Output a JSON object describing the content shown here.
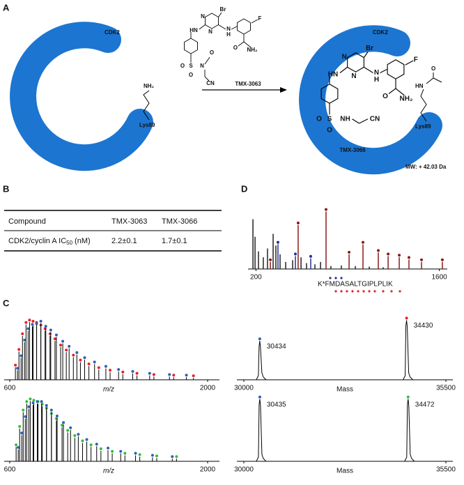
{
  "panel_a": {
    "label": "A",
    "protein": "CDK2",
    "residue": "Lys89",
    "amine": "NH₂",
    "acetyl_amine": "HN",
    "acetyl_oxygen": "O",
    "mass_shift": "MW: + 42.03 Da",
    "compounds": [
      {
        "name": "TMX-3063",
        "atoms": [
          "Br",
          "N",
          "N",
          "HN",
          "N",
          "H",
          "F",
          "O",
          "NH₂",
          "S",
          "O",
          "O",
          "N",
          "O",
          "CN"
        ]
      },
      {
        "name": "TMX-3066",
        "atoms": [
          "Br",
          "N",
          "N",
          "HN",
          "N",
          "H",
          "F",
          "O",
          "NH₂",
          "S",
          "O",
          "O",
          "NH",
          "CN"
        ]
      }
    ]
  },
  "panel_b": {
    "label": "B",
    "header": [
      "Compound",
      "TMX-3063",
      "TMX-3066"
    ],
    "row": {
      "name": "CDK2/cyclin A IC",
      "subscript": "50",
      "unit": "(nM)",
      "values": [
        "2.2±0.1",
        "1.7±0.1"
      ]
    }
  },
  "panel_c": {
    "label": "C",
    "spectra": [
      {
        "type": "stick",
        "xlim": [
          600,
          2000
        ],
        "xticks": [
          600,
          2000
        ],
        "xlabel": "m/z",
        "ylim": [
          0,
          100
        ],
        "series": [
          {
            "color": "#e8202a",
            "x": [
              640,
              665,
              690,
              715,
              740,
              765,
              790,
              820,
              850,
              885,
              920,
              960,
              1000,
              1050,
              1100,
              1160,
              1230,
              1310,
              1400,
              1500,
              1620,
              1760,
              1900
            ],
            "values": [
              20,
              45,
              70,
              88,
              92,
              90,
              88,
              84,
              78,
              70,
              62,
              52,
              44,
              36,
              28,
              22,
              16,
              12,
              9,
              7,
              5,
              4,
              3
            ]
          },
          {
            "color": "#2f5fb3",
            "x": [
              655,
              680,
              705,
              730,
              760,
              790,
              820,
              855,
              890,
              930,
              975,
              1020,
              1075,
              1130,
              1200,
              1280,
              1370,
              1470,
              1590,
              1730,
              1850
            ],
            "values": [
              15,
              35,
              60,
              78,
              85,
              86,
              90,
              82,
              76,
              68,
              58,
              50,
              40,
              32,
              25,
              18,
              13,
              10,
              7,
              5,
              4
            ]
          }
        ]
      },
      {
        "type": "profile",
        "xlim": [
          30000,
          35500
        ],
        "xticks": [
          30000,
          35500
        ],
        "xlabel": "Mass",
        "ylim": [
          0,
          100
        ],
        "series": [
          {
            "color": "#2f5fb3",
            "x": [
              30434
            ],
            "values": [
              62
            ]
          },
          {
            "color": "#e8202a",
            "x": [
              34430
            ],
            "values": [
              95
            ]
          }
        ]
      },
      {
        "type": "stick",
        "xlim": [
          600,
          2000
        ],
        "xticks": [
          600,
          2000
        ],
        "xlabel": "m/z",
        "ylim": [
          0,
          100
        ],
        "series": [
          {
            "color": "#2fbf3a",
            "x": [
              645,
              670,
              695,
              720,
              745,
              770,
              800,
              830,
              860,
              895,
              930,
              970,
              1010,
              1060,
              1115,
              1175,
              1245,
              1325,
              1415,
              1520,
              1640,
              1780
            ],
            "values": [
              22,
              50,
              75,
              88,
              92,
              90,
              88,
              84,
              78,
              70,
              62,
              52,
              44,
              36,
              28,
              22,
              16,
              12,
              9,
              7,
              5,
              4
            ]
          },
          {
            "color": "#2f5fb3",
            "x": [
              660,
              685,
              710,
              735,
              765,
              795,
              825,
              860,
              895,
              935,
              980,
              1030,
              1085,
              1145,
              1215,
              1295,
              1385,
              1490,
              1610,
              1750
            ],
            "values": [
              18,
              40,
              65,
              80,
              86,
              88,
              88,
              82,
              75,
              66,
              56,
              48,
              38,
              30,
              23,
              17,
              12,
              9,
              6,
              4
            ]
          }
        ]
      },
      {
        "type": "profile",
        "xlim": [
          30000,
          35500
        ],
        "xticks": [
          30000,
          35500
        ],
        "xlabel": "Mass",
        "ylim": [
          0,
          100
        ],
        "series": [
          {
            "color": "#2f5fb3",
            "x": [
              30435
            ],
            "values": [
              95
            ]
          },
          {
            "color": "#2fbf3a",
            "x": [
              34472
            ],
            "values": [
              95
            ]
          }
        ]
      }
    ]
  },
  "panel_d": {
    "label": "D",
    "type": "stick",
    "xlim": [
      150,
      1650
    ],
    "xticks": [
      200,
      1600
    ],
    "ylim": [
      0,
      100
    ],
    "peptide": "K*FMDASALTGIPLPLIK",
    "series": [
      {
        "color": "#222222",
        "dots": false,
        "x": [
          177,
          193,
          219,
          256,
          288,
          331,
          352,
          384,
          427,
          480,
          544,
          586,
          650,
          693,
          772,
          852,
          959,
          1065,
          1171
        ],
        "values": [
          85,
          55,
          30,
          20,
          35,
          60,
          40,
          25,
          12,
          15,
          20,
          10,
          8,
          12,
          5,
          6,
          5,
          4,
          3
        ]
      },
      {
        "color": "#8b1a1a",
        "dots": true,
        "x": [
          310,
          522,
          735,
          911,
          1017,
          1134,
          1209,
          1294,
          1368,
          1464,
          1623
        ],
        "values": [
          12,
          75,
          98,
          25,
          42,
          28,
          22,
          20,
          16,
          12,
          12
        ]
      },
      {
        "color": "#1f2f9a",
        "dots": true,
        "x": [
          368,
          501,
          618
        ],
        "values": [
          42,
          22,
          18
        ]
      }
    ]
  }
}
